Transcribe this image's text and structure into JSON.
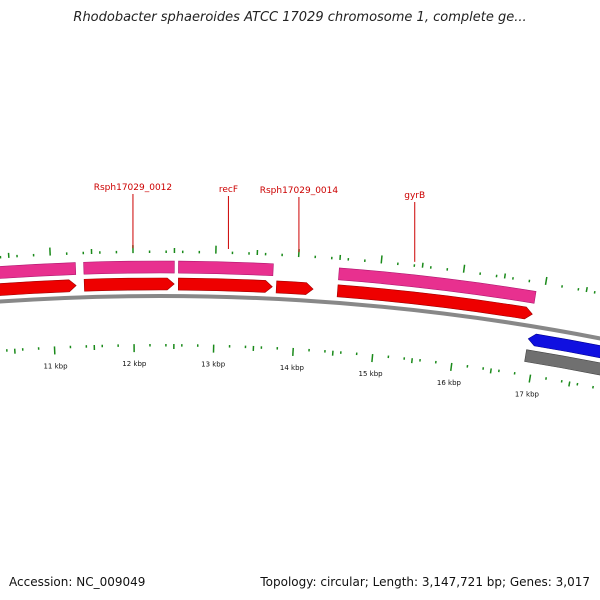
{
  "title": "Rhodobacter sphaeroides ATCC 17029 chromosome 1, complete ge...",
  "footer": {
    "accession": "Accession: NC_009049",
    "topology": "Topology: circular; Length: 3,147,721 bp; Genes: 3,017"
  },
  "colors": {
    "cds_outer": "#e8308f",
    "cds_inner": "#ee0000",
    "reverse_gene": "#1010e0",
    "reverse_gene_outer": "#707070",
    "backbone": "#888888",
    "ticks": "#1a8a1a",
    "gene_labels": "#cc0000"
  },
  "gene_labels": [
    {
      "name": "Rsph17029_0012",
      "kbp": 12.0
    },
    {
      "name": "recF",
      "kbp": 13.15
    },
    {
      "name": "Rsph17029_0014",
      "kbp": 14.0
    },
    {
      "name": "gyrB",
      "kbp": 15.4
    }
  ],
  "features_forward": [
    {
      "start_kbp": 10.1,
      "end_kbp": 11.3
    },
    {
      "start_kbp": 11.4,
      "end_kbp": 12.5
    },
    {
      "start_kbp": 12.55,
      "end_kbp": 13.7
    },
    {
      "start_kbp": 13.75,
      "end_kbp": 14.2
    },
    {
      "start_kbp": 14.5,
      "end_kbp": 16.9
    }
  ],
  "features_reverse": [
    {
      "start_kbp": 16.9,
      "end_kbp": 18.0
    }
  ],
  "kbp_ticks": [
    {
      "kbp": 11,
      "label": "11 kbp"
    },
    {
      "kbp": 12,
      "label": "12 kbp"
    },
    {
      "kbp": 13,
      "label": "13 kbp"
    },
    {
      "kbp": 14,
      "label": "14 kbp"
    },
    {
      "kbp": 15,
      "label": "15 kbp"
    },
    {
      "kbp": 16,
      "label": "16 kbp"
    },
    {
      "kbp": 17,
      "label": "17 kbp"
    }
  ]
}
